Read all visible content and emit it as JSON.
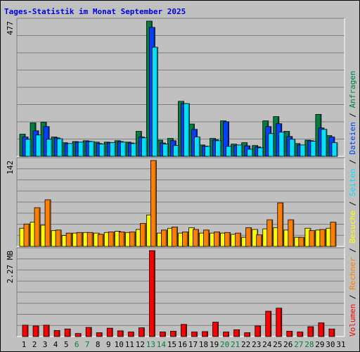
{
  "page_title": "Tages-Statistik im Monat September 2025",
  "colors": {
    "anfragen": "#008040",
    "dateien": "#0040ff",
    "seiten": "#00e0ff",
    "besuche": "#ffff00",
    "rechner": "#ff8000",
    "volumen": "#ff0000",
    "weekend_label": "#008040",
    "weekday_label": "#000000",
    "title": "#0000e0"
  },
  "chart_data": [
    {
      "type": "bar",
      "title": "Tages-Statistik im Monat September 2025",
      "panel": "top",
      "categories": [
        "1",
        "2",
        "3",
        "4",
        "5",
        "6",
        "7",
        "8",
        "9",
        "10",
        "11",
        "12",
        "13",
        "14",
        "15",
        "16",
        "17",
        "18",
        "19",
        "20",
        "21",
        "22",
        "23",
        "24",
        "25",
        "26",
        "27",
        "28",
        "29",
        "30",
        "31"
      ],
      "ymax_label": "477",
      "ylim": [
        0,
        477
      ],
      "series": [
        {
          "name": "Anfragen",
          "values": [
            78,
            118,
            120,
            68,
            48,
            52,
            55,
            50,
            50,
            55,
            50,
            88,
            477,
            57,
            63,
            194,
            114,
            40,
            63,
            125,
            43,
            48,
            38,
            125,
            140,
            88,
            45,
            57,
            148,
            73,
            0
          ]
        },
        {
          "name": "Dateien",
          "values": [
            68,
            90,
            105,
            65,
            45,
            50,
            53,
            45,
            48,
            52,
            47,
            68,
            455,
            47,
            55,
            186,
            95,
            36,
            58,
            122,
            38,
            37,
            33,
            105,
            115,
            70,
            40,
            55,
            100,
            68,
            0
          ]
        },
        {
          "name": "Seiten",
          "values": [
            60,
            75,
            60,
            62,
            45,
            50,
            52,
            43,
            48,
            50,
            45,
            65,
            385,
            43,
            38,
            186,
            68,
            35,
            55,
            35,
            40,
            25,
            30,
            80,
            85,
            60,
            40,
            53,
            95,
            48,
            0
          ]
        }
      ]
    },
    {
      "type": "bar",
      "panel": "middle",
      "categories": [
        "1",
        "2",
        "3",
        "4",
        "5",
        "6",
        "7",
        "8",
        "9",
        "10",
        "11",
        "12",
        "13",
        "14",
        "15",
        "16",
        "17",
        "18",
        "19",
        "20",
        "21",
        "22",
        "23",
        "24",
        "25",
        "26",
        "27",
        "28",
        "29",
        "30",
        "31"
      ],
      "ymax_label": "142",
      "ylim": [
        0,
        142
      ],
      "series": [
        {
          "name": "Besuche",
          "values": [
            30,
            40,
            35,
            26,
            18,
            22,
            23,
            22,
            23,
            25,
            23,
            28,
            52,
            22,
            30,
            22,
            31,
            22,
            22,
            22,
            20,
            15,
            28,
            29,
            31,
            27,
            15,
            30,
            27,
            30,
            0
          ]
        },
        {
          "name": "Rechner",
          "values": [
            37,
            64,
            77,
            27,
            22,
            23,
            23,
            20,
            24,
            24,
            24,
            38,
            142,
            27,
            32,
            24,
            28,
            27,
            24,
            23,
            22,
            31,
            19,
            44,
            72,
            44,
            15,
            26,
            28,
            40,
            0
          ]
        }
      ]
    },
    {
      "type": "bar",
      "panel": "bottom",
      "categories": [
        "1",
        "2",
        "3",
        "4",
        "5",
        "6",
        "7",
        "8",
        "9",
        "10",
        "11",
        "12",
        "13",
        "14",
        "15",
        "16",
        "17",
        "18",
        "19",
        "20",
        "21",
        "22",
        "23",
        "24",
        "25",
        "26",
        "27",
        "28",
        "29",
        "30",
        "31"
      ],
      "ymax_label": "2.27 MB",
      "ylim": [
        0,
        2.27
      ],
      "series": [
        {
          "name": "Volumen",
          "values": [
            0.3,
            0.28,
            0.3,
            0.16,
            0.2,
            0.08,
            0.24,
            0.1,
            0.22,
            0.15,
            0.12,
            0.23,
            2.27,
            0.12,
            0.14,
            0.32,
            0.12,
            0.13,
            0.38,
            0.12,
            0.18,
            0.1,
            0.28,
            0.67,
            0.75,
            0.14,
            0.12,
            0.26,
            0.36,
            0.2,
            0.0
          ]
        }
      ]
    }
  ],
  "legend": [
    {
      "label": "Volumen",
      "color": "#ff0000"
    },
    {
      "label": "Rechner",
      "color": "#ff8000"
    },
    {
      "label": "Besuche",
      "color": "#ffff00"
    },
    {
      "label": "Seiten",
      "color": "#00e0ff"
    },
    {
      "label": "Dateien",
      "color": "#0040ff"
    },
    {
      "label": "Anfragen",
      "color": "#008040"
    }
  ],
  "legend_separator": " / ",
  "weekend_days": [
    "6",
    "7",
    "13",
    "14",
    "20",
    "21",
    "27",
    "28"
  ]
}
